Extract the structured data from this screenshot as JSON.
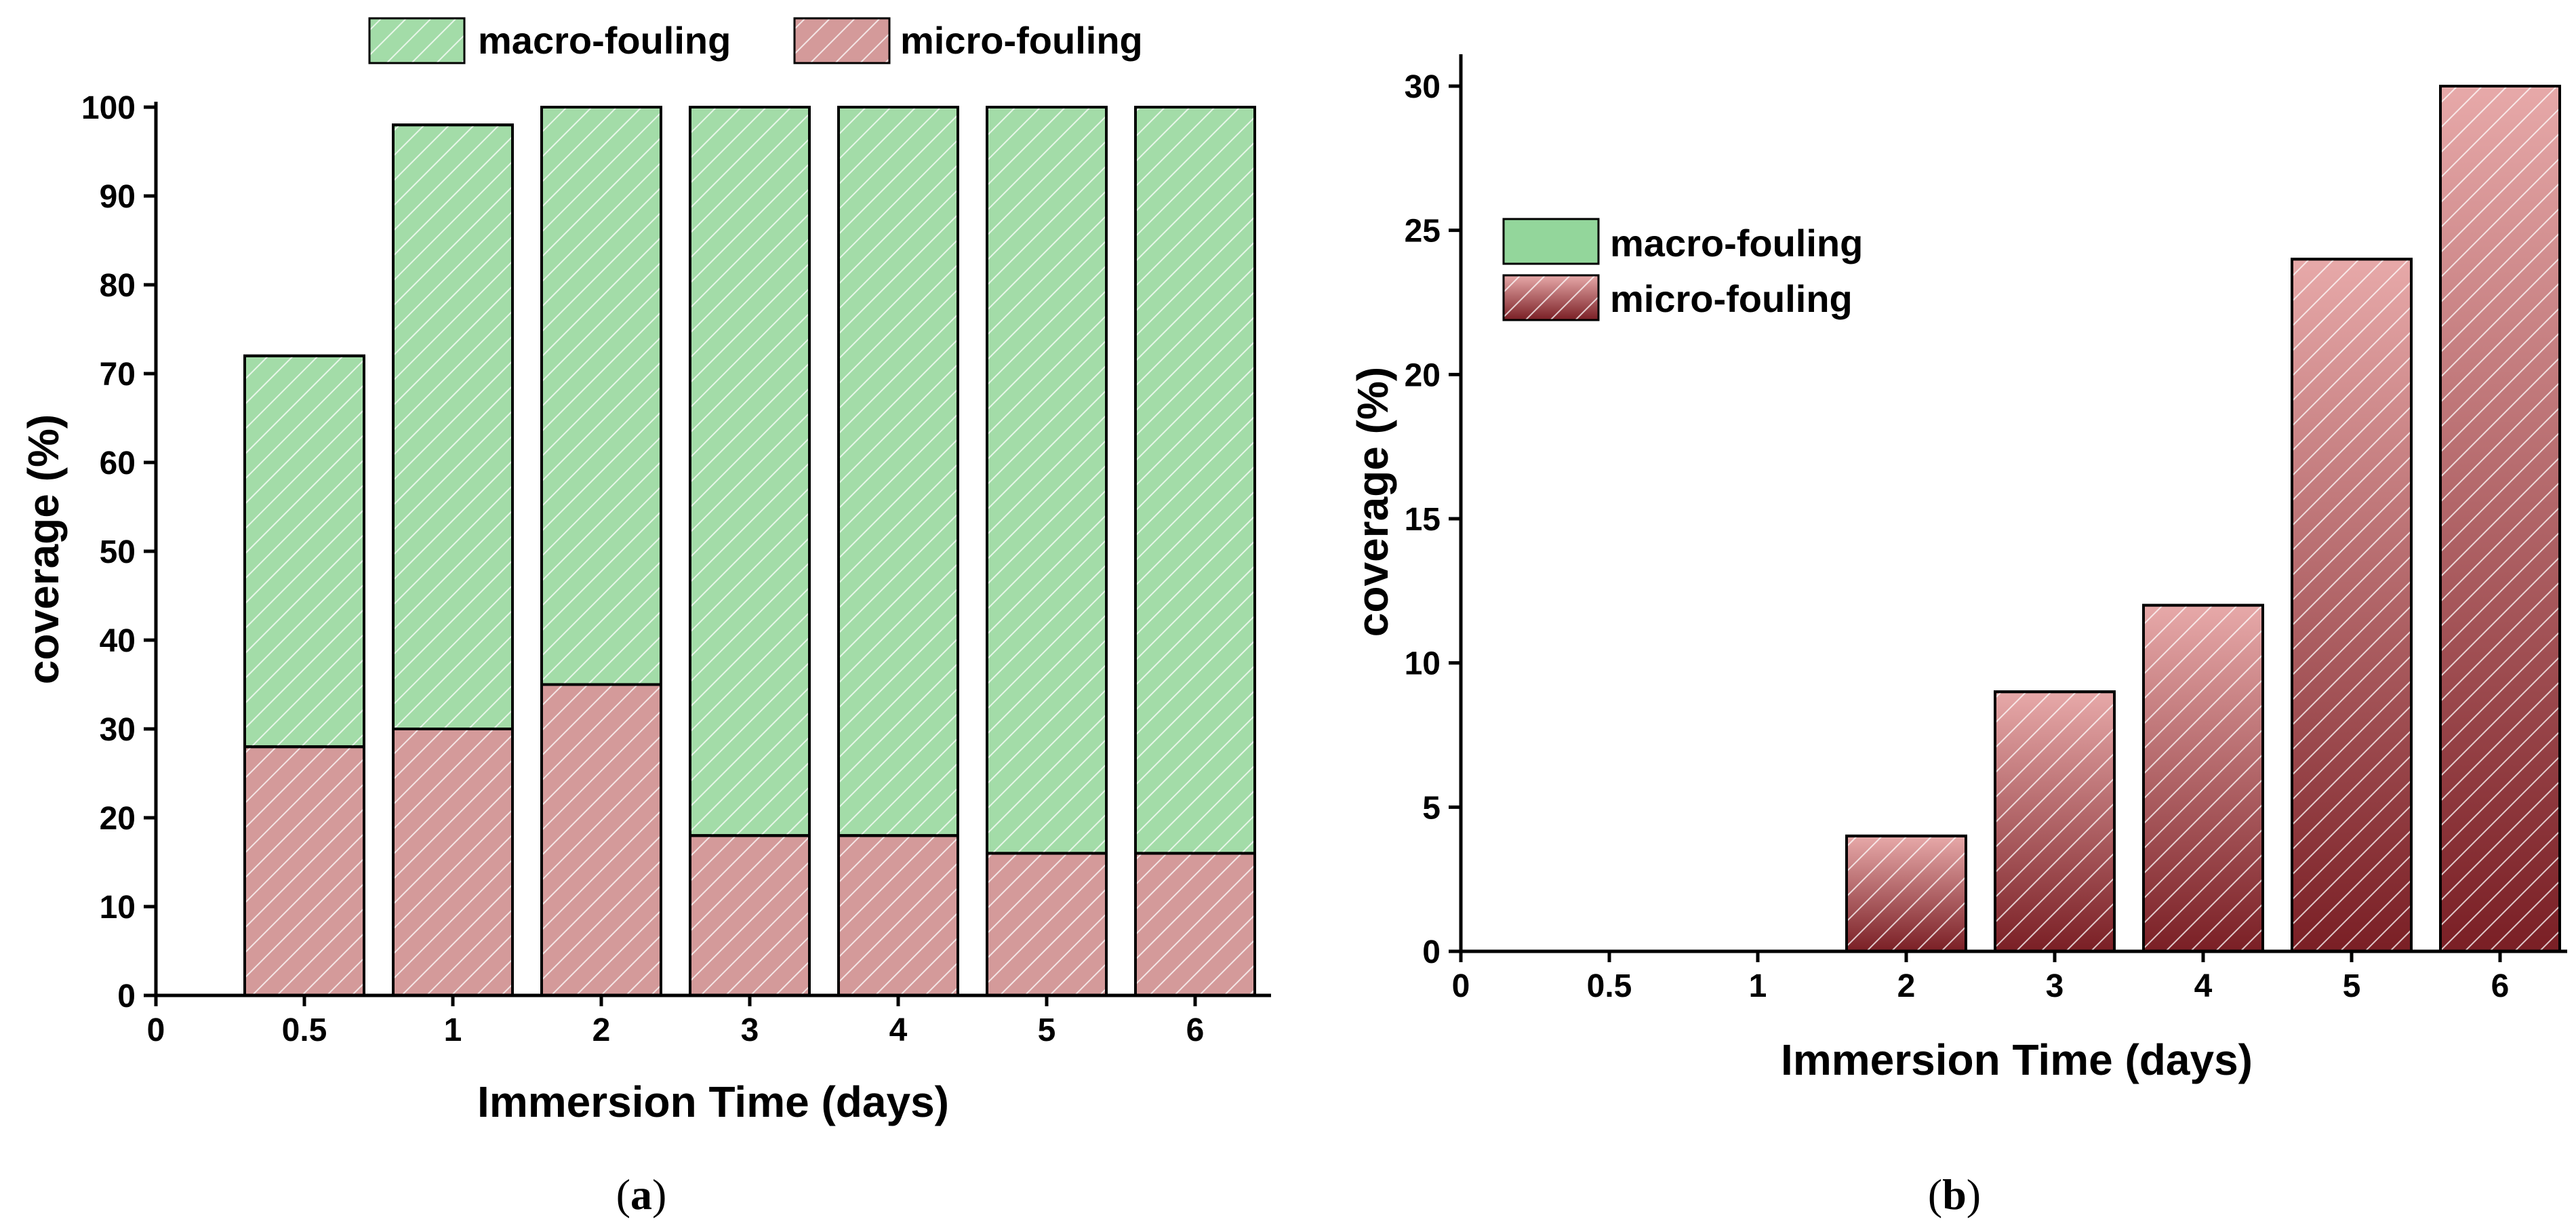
{
  "colors": {
    "macro": "#a3dca8",
    "micro": "#d49a9a",
    "micro_b_top": "#e7a9a9",
    "micro_b_bottom": "#7a1f25",
    "macro_legend_b": "#93d69b",
    "stroke": "#000000"
  },
  "chart_data": [
    {
      "id": "a",
      "type": "bar",
      "stacked": true,
      "caption": "(a)",
      "caption_prefix": "(",
      "caption_letter": "a",
      "caption_suffix": ")",
      "xlabel": "Immersion Time (days)",
      "ylabel": "coverage (%)",
      "x_tick_labels": [
        "0",
        "0.5",
        "1",
        "2",
        "3",
        "4",
        "5",
        "6"
      ],
      "categories": [
        "0.5",
        "1",
        "2",
        "3",
        "4",
        "5",
        "6"
      ],
      "ylim": [
        0,
        100
      ],
      "yticks": [
        0,
        10,
        20,
        30,
        40,
        50,
        60,
        70,
        80,
        90,
        100
      ],
      "legend_position": "top-center",
      "series": [
        {
          "name": "micro-fouling",
          "values": [
            28,
            30,
            35,
            18,
            18,
            16,
            16
          ]
        },
        {
          "name": "macro-fouling",
          "values": [
            44,
            68,
            65,
            82,
            82,
            84,
            84
          ]
        }
      ],
      "legend": [
        "macro-fouling",
        "micro-fouling"
      ]
    },
    {
      "id": "b",
      "type": "bar",
      "stacked": false,
      "caption": "(b)",
      "caption_prefix": "(",
      "caption_letter": "b",
      "caption_suffix": ")",
      "xlabel": "Immersion Time (days)",
      "ylabel": "coverage (%)",
      "x_tick_labels": [
        "0",
        "0.5",
        "1",
        "2",
        "3",
        "4",
        "5",
        "6"
      ],
      "categories": [
        "0.5",
        "1",
        "2",
        "3",
        "4",
        "5",
        "6"
      ],
      "ylim": [
        0,
        31
      ],
      "yticks": [
        0,
        5,
        10,
        15,
        20,
        25,
        30
      ],
      "legend_position": "top-left",
      "series": [
        {
          "name": "micro-fouling",
          "values": [
            0,
            0,
            4,
            9,
            12,
            24,
            30
          ]
        }
      ],
      "legend": [
        "macro-fouling",
        "micro-fouling"
      ]
    }
  ]
}
